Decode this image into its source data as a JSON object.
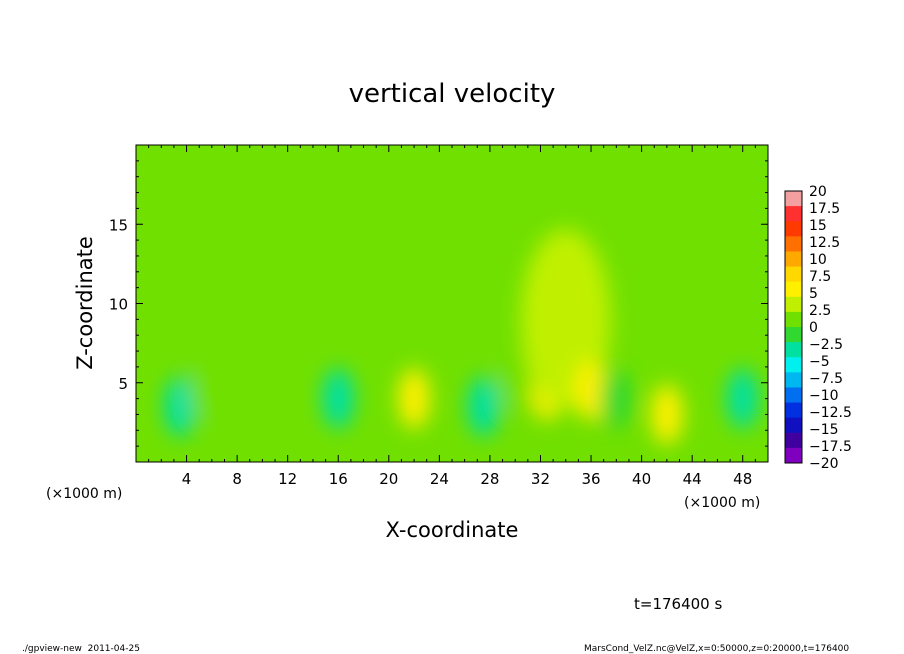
{
  "chart_data": {
    "type": "heatmap",
    "title": "vertical velocity",
    "xlabel": "X-coordinate",
    "ylabel": "Z-coordinate",
    "x_unit_label_left": "(×1000 m)",
    "x_unit_label_right": "(×1000 m)",
    "time_label": "t=176400 s",
    "footer_left": "./gpview-new  2011-04-25",
    "footer_right": "MarsCond_VelZ.nc@VelZ,x=0:50000,z=0:20000,t=176400",
    "xlim": [
      0,
      50
    ],
    "ylim": [
      0,
      20
    ],
    "x_ticks": [
      4,
      8,
      12,
      16,
      20,
      24,
      28,
      32,
      36,
      40,
      44,
      48
    ],
    "x_tick_labels": [
      "4",
      "8",
      "12",
      "16",
      "20",
      "24",
      "28",
      "32",
      "36",
      "40",
      "44",
      "48"
    ],
    "y_ticks": [
      5,
      10,
      15
    ],
    "y_tick_labels": [
      "5",
      "10",
      "15"
    ],
    "colorbar": {
      "levels": [
        20,
        17.5,
        15,
        12.5,
        10,
        7.5,
        5,
        2.5,
        0,
        -2.5,
        -5,
        -7.5,
        -10,
        -12.5,
        -15,
        -17.5,
        -20
      ],
      "labels": [
        "20",
        "17.5",
        "15",
        "12.5",
        "10",
        "7.5",
        "5",
        "2.5",
        "0",
        "−2.5",
        "−5",
        "−7.5",
        "−10",
        "−12.5",
        "−15",
        "−17.5",
        "−20"
      ],
      "colors": [
        "#f5a0a0",
        "#ff3030",
        "#ff3a00",
        "#ff7000",
        "#ffa800",
        "#ffd800",
        "#fff000",
        "#c0f000",
        "#70e000",
        "#30d830",
        "#00e0a0",
        "#00f0f0",
        "#00b8f0",
        "#0070f0",
        "#0030e0",
        "#1010c0",
        "#4000a0",
        "#8000c0"
      ]
    },
    "features": [
      {
        "x": 3.5,
        "z": 3.5,
        "value": -3.5
      },
      {
        "x": 5.5,
        "z": 4.5,
        "value": 1.5
      },
      {
        "x": 9.5,
        "z": 4.0,
        "value": 1.0
      },
      {
        "x": 16.0,
        "z": 4.0,
        "value": -5.0
      },
      {
        "x": 22.0,
        "z": 4.0,
        "value": 5.0
      },
      {
        "x": 27.5,
        "z": 3.5,
        "value": -4.0
      },
      {
        "x": 30.0,
        "z": 5.0,
        "value": 1.5
      },
      {
        "x": 32.5,
        "z": 4.5,
        "value": 6.5
      },
      {
        "x": 34.0,
        "z": 9.0,
        "value": 2.5
      },
      {
        "x": 36.0,
        "z": 4.5,
        "value": 7.0
      },
      {
        "x": 38.0,
        "z": 4.0,
        "value": -2.5
      },
      {
        "x": 42.0,
        "z": 3.0,
        "value": 5.0
      },
      {
        "x": 48.0,
        "z": 4.0,
        "value": -4.5
      }
    ]
  }
}
